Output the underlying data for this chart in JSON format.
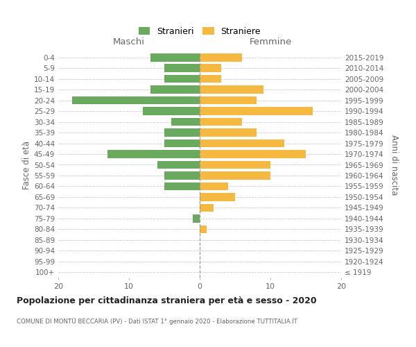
{
  "age_groups": [
    "100+",
    "95-99",
    "90-94",
    "85-89",
    "80-84",
    "75-79",
    "70-74",
    "65-69",
    "60-64",
    "55-59",
    "50-54",
    "45-49",
    "40-44",
    "35-39",
    "30-34",
    "25-29",
    "20-24",
    "15-19",
    "10-14",
    "5-9",
    "0-4"
  ],
  "birth_years": [
    "≤ 1919",
    "1920-1924",
    "1925-1929",
    "1930-1934",
    "1935-1939",
    "1940-1944",
    "1945-1949",
    "1950-1954",
    "1955-1959",
    "1960-1964",
    "1965-1969",
    "1970-1974",
    "1975-1979",
    "1980-1984",
    "1985-1989",
    "1990-1994",
    "1995-1999",
    "2000-2004",
    "2005-2009",
    "2010-2014",
    "2015-2019"
  ],
  "maschi": [
    0,
    0,
    0,
    0,
    0,
    1,
    0,
    0,
    5,
    5,
    6,
    13,
    5,
    5,
    4,
    8,
    18,
    7,
    5,
    5,
    7
  ],
  "femmine": [
    0,
    0,
    0,
    0,
    1,
    0,
    2,
    5,
    4,
    10,
    10,
    15,
    12,
    8,
    6,
    16,
    8,
    9,
    3,
    3,
    6
  ],
  "color_maschi": "#6aaa5e",
  "color_femmine": "#f5b942",
  "title": "Popolazione per cittadinanza straniera per età e sesso - 2020",
  "subtitle": "COMUNE DI MONTÜ BECCARIA (PV) - Dati ISTAT 1° gennaio 2020 - Elaborazione TUTTITALIA.IT",
  "xlabel_left": "Maschi",
  "xlabel_right": "Femmine",
  "ylabel_left": "Fasce di età",
  "ylabel_right": "Anni di nascita",
  "legend_maschi": "Stranieri",
  "legend_femmine": "Straniere",
  "xlim": 20,
  "xticks": [
    -20,
    -10,
    0,
    10,
    20
  ],
  "background_color": "#ffffff",
  "grid_color": "#cccccc",
  "text_color": "#666666",
  "title_color": "#222222"
}
